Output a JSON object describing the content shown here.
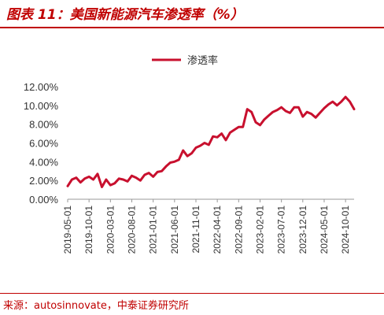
{
  "header": {
    "title": "图表 11：美国新能源汽车渗透率（%）"
  },
  "footer": {
    "source": "来源：autosinnovate，中泰证券研究所"
  },
  "colors": {
    "accent": "#c00000",
    "series": "#c8102e"
  },
  "chart_data": {
    "type": "line",
    "title": "",
    "xlabel": "",
    "ylabel": "",
    "ylim": [
      0,
      0.12
    ],
    "y_tick_labels": [
      "0.00%",
      "2.00%",
      "4.00%",
      "6.00%",
      "8.00%",
      "10.00%",
      "12.00%"
    ],
    "x_tick_labels": [
      "2019-05-01",
      "2019-10-01",
      "2020-03-01",
      "2020-08-01",
      "2021-01-01",
      "2021-06-01",
      "2021-11-01",
      "2022-04-01",
      "2022-09-01",
      "2023-02-01",
      "2023-07-01",
      "2023-12-01",
      "2024-05-01",
      "2024-10-01"
    ],
    "legend": {
      "position": "top-center",
      "entries": [
        "渗透率"
      ]
    },
    "grid": false,
    "series": [
      {
        "name": "渗透率",
        "x": [
          "2019-05-01",
          "2019-06-01",
          "2019-07-01",
          "2019-08-01",
          "2019-09-01",
          "2019-10-01",
          "2019-11-01",
          "2019-12-01",
          "2020-01-01",
          "2020-02-01",
          "2020-03-01",
          "2020-04-01",
          "2020-05-01",
          "2020-06-01",
          "2020-07-01",
          "2020-08-01",
          "2020-09-01",
          "2020-10-01",
          "2020-11-01",
          "2020-12-01",
          "2021-01-01",
          "2021-02-01",
          "2021-03-01",
          "2021-04-01",
          "2021-05-01",
          "2021-06-01",
          "2021-07-01",
          "2021-08-01",
          "2021-09-01",
          "2021-10-01",
          "2021-11-01",
          "2021-12-01",
          "2022-01-01",
          "2022-02-01",
          "2022-03-01",
          "2022-04-01",
          "2022-05-01",
          "2022-06-01",
          "2022-07-01",
          "2022-08-01",
          "2022-09-01",
          "2022-10-01",
          "2022-11-01",
          "2022-12-01",
          "2023-01-01",
          "2023-02-01",
          "2023-03-01",
          "2023-04-01",
          "2023-05-01",
          "2023-06-01",
          "2023-07-01",
          "2023-08-01",
          "2023-09-01",
          "2023-10-01",
          "2023-11-01",
          "2023-12-01",
          "2024-01-01",
          "2024-02-01",
          "2024-03-01",
          "2024-04-01",
          "2024-05-01",
          "2024-06-01",
          "2024-07-01",
          "2024-08-01",
          "2024-09-01",
          "2024-10-01",
          "2024-11-01",
          "2024-12-01"
        ],
        "values": [
          0.014,
          0.021,
          0.023,
          0.018,
          0.022,
          0.024,
          0.021,
          0.027,
          0.013,
          0.021,
          0.015,
          0.017,
          0.022,
          0.021,
          0.019,
          0.025,
          0.023,
          0.02,
          0.026,
          0.028,
          0.024,
          0.029,
          0.03,
          0.035,
          0.039,
          0.04,
          0.042,
          0.052,
          0.046,
          0.049,
          0.055,
          0.057,
          0.06,
          0.058,
          0.067,
          0.066,
          0.07,
          0.063,
          0.071,
          0.074,
          0.077,
          0.077,
          0.096,
          0.093,
          0.082,
          0.079,
          0.085,
          0.089,
          0.093,
          0.095,
          0.098,
          0.094,
          0.092,
          0.098,
          0.098,
          0.088,
          0.093,
          0.091,
          0.087,
          0.092,
          0.097,
          0.101,
          0.104,
          0.1,
          0.104,
          0.109,
          0.104,
          0.096
        ]
      }
    ]
  }
}
